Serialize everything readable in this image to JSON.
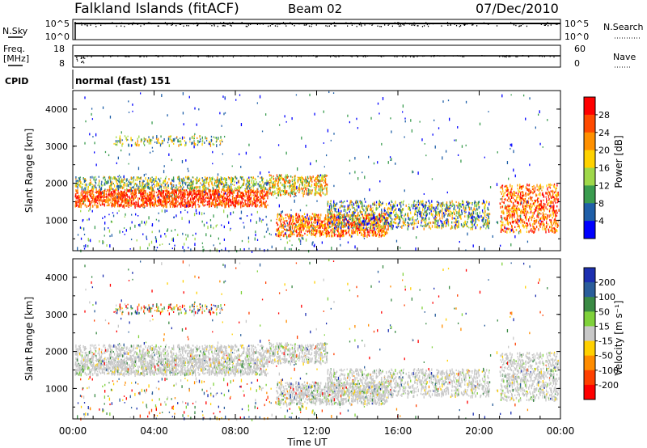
{
  "header": {
    "station": "Falkland Islands (fitACF)",
    "beam": "Beam 02",
    "date": "07/Dec/2010"
  },
  "top_panels": {
    "nsky_label": "N.Sky",
    "nsky_ticks": [
      "10^5",
      "10^0"
    ],
    "nsearch_label": "N.Search",
    "nsearch_ticks": [
      "10^5",
      "10^0"
    ],
    "freq_label": "Freq.",
    "freq_unit": "[MHz]",
    "freq_ticks": [
      "18",
      "8"
    ],
    "nave_label": "Nave",
    "nave_ticks": [
      "60",
      "0"
    ],
    "cpid_label": "CPID",
    "cpid_text": "normal (fast) 151"
  },
  "chart_data": [
    {
      "type": "heatmap",
      "name": "power",
      "ylabel": "Slant Range [km]",
      "yticks": [
        "4000",
        "3000",
        "2000",
        "1000"
      ],
      "ylim": [
        180,
        4500
      ],
      "xlim": [
        0,
        24
      ],
      "colorbar_label": "Power [dB]",
      "colorbar_ticks": [
        "28",
        "24",
        "20",
        "16",
        "12",
        "8",
        "4"
      ],
      "colorbar_colors": [
        "#ff0000",
        "#ff4a00",
        "#ff9000",
        "#ffd200",
        "#9fd84a",
        "#3a9c4f",
        "#1f5fa8",
        "#0000ff"
      ]
    },
    {
      "type": "heatmap",
      "name": "velocity",
      "ylabel": "Slant Range [km]",
      "yticks": [
        "4000",
        "3000",
        "2000",
        "1000"
      ],
      "ylim": [
        180,
        4500
      ],
      "xlim": [
        0,
        24
      ],
      "colorbar_label": "Velocity [m s⁻¹]",
      "colorbar_ticks": [
        "200",
        "100",
        "50",
        "15",
        "-15",
        "-50",
        "-100",
        "-200"
      ],
      "colorbar_colors": [
        "#1c2fb0",
        "#2a5d9a",
        "#3a8a44",
        "#7fd13b",
        "#c8c8c8",
        "#ffd000",
        "#ff8c00",
        "#ff4000",
        "#ff0000"
      ]
    }
  ],
  "xaxis": {
    "ticks": [
      "00:00",
      "04:00",
      "08:00",
      "12:00",
      "16:00",
      "20:00",
      "00:00"
    ],
    "label": "Time UT"
  }
}
